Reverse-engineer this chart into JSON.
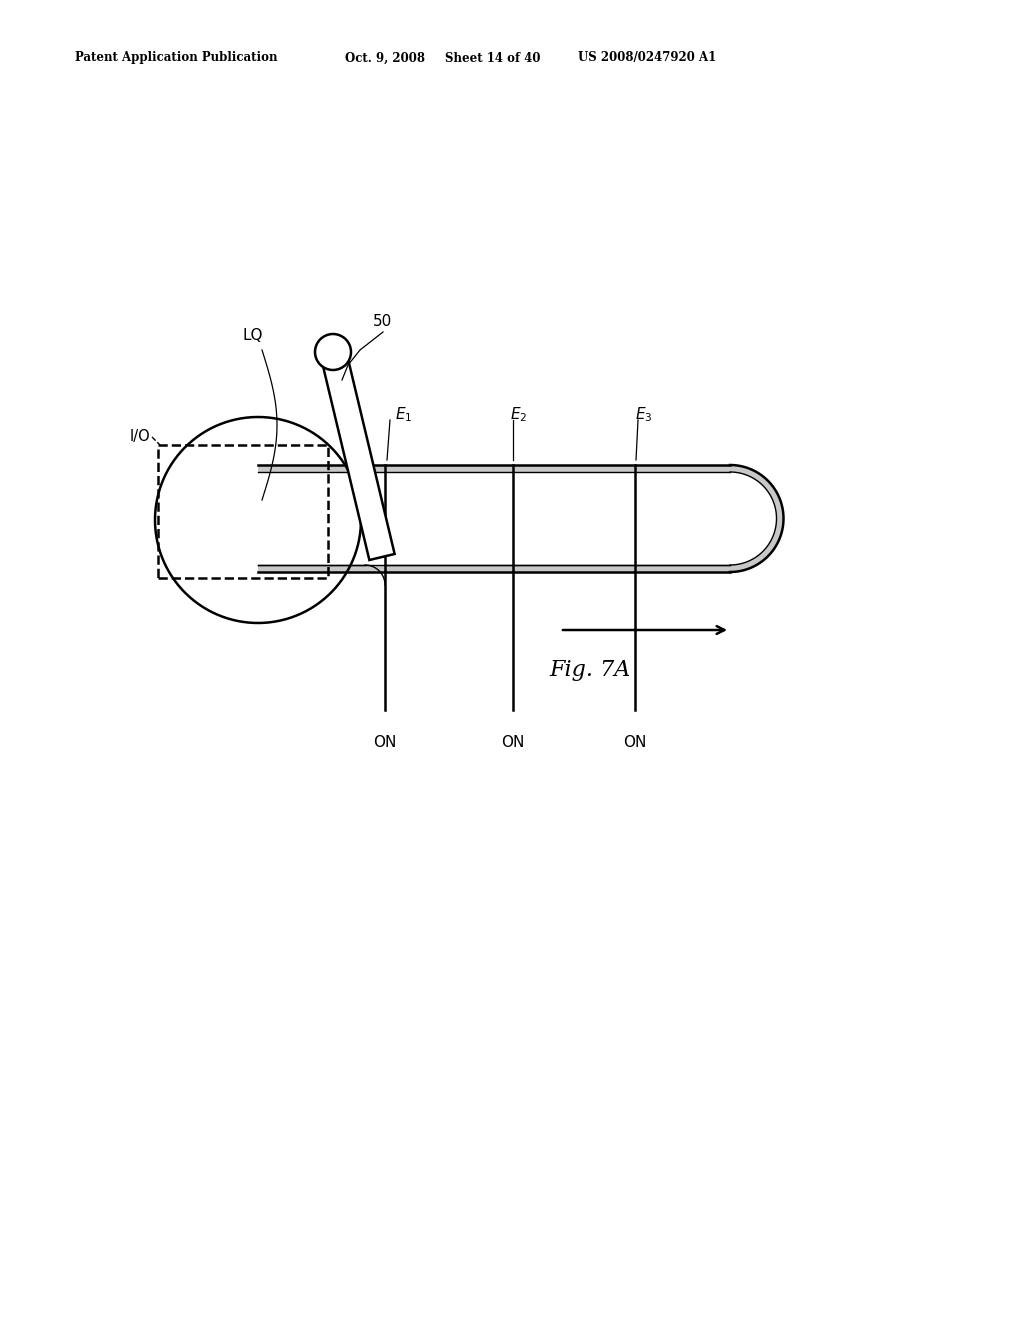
{
  "bg_color": "#ffffff",
  "header_text": "Patent Application Publication",
  "header_date": "Oct. 9, 2008",
  "header_sheet": "Sheet 14 of 40",
  "header_patent": "US 2008/0247920 A1",
  "fig_label": "Fig. 7A",
  "label_LQ": "LQ",
  "label_50": "50",
  "label_IO": "I/O",
  "label_E1": "E",
  "label_E1_sub": "1",
  "label_E2": "E",
  "label_E2_sub": "2",
  "label_E3": "E",
  "label_E3_sub": "3",
  "label_ON": "ON",
  "line_color": "#000000",
  "gray_shade": "#c8c8c8",
  "lw_main": 1.8,
  "lw_thin": 1.0
}
